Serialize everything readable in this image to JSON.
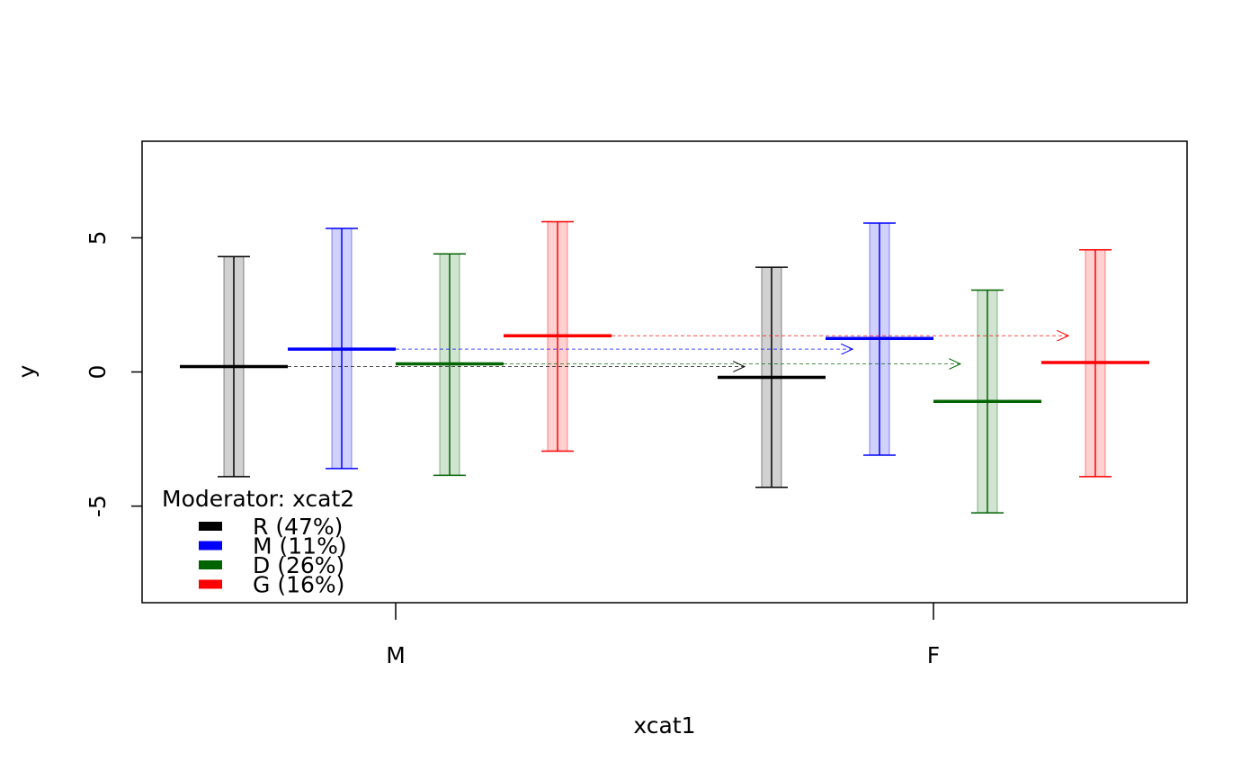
{
  "chart_data": {
    "type": "interval",
    "xlabel": "xcat1",
    "ylabel": "y",
    "ylim": [
      -8.6,
      8.6
    ],
    "y_ticks": [
      -5,
      0,
      5
    ],
    "grid": false,
    "categories": [
      "M",
      "F"
    ],
    "series": [
      {
        "name": "R (47%)",
        "color": "#000000",
        "means": [
          0.2,
          -0.2
        ],
        "upper": [
          4.3,
          3.9
        ],
        "lower": [
          -3.9,
          -4.3
        ]
      },
      {
        "name": "M (11%)",
        "color": "#0000ff",
        "means": [
          0.85,
          1.25
        ],
        "upper": [
          5.35,
          5.55
        ],
        "lower": [
          -3.6,
          -3.1
        ]
      },
      {
        "name": "D (26%)",
        "color": "#006400",
        "means": [
          0.3,
          -1.1
        ],
        "upper": [
          4.4,
          3.05
        ],
        "lower": [
          -3.85,
          -5.25
        ]
      },
      {
        "name": "G (16%)",
        "color": "#ff0000",
        "means": [
          1.35,
          0.35
        ],
        "upper": [
          5.6,
          4.55
        ],
        "lower": [
          -2.95,
          -3.9
        ]
      }
    ],
    "legend": {
      "title": "Moderator: xcat2",
      "position": "bottom-left"
    }
  }
}
